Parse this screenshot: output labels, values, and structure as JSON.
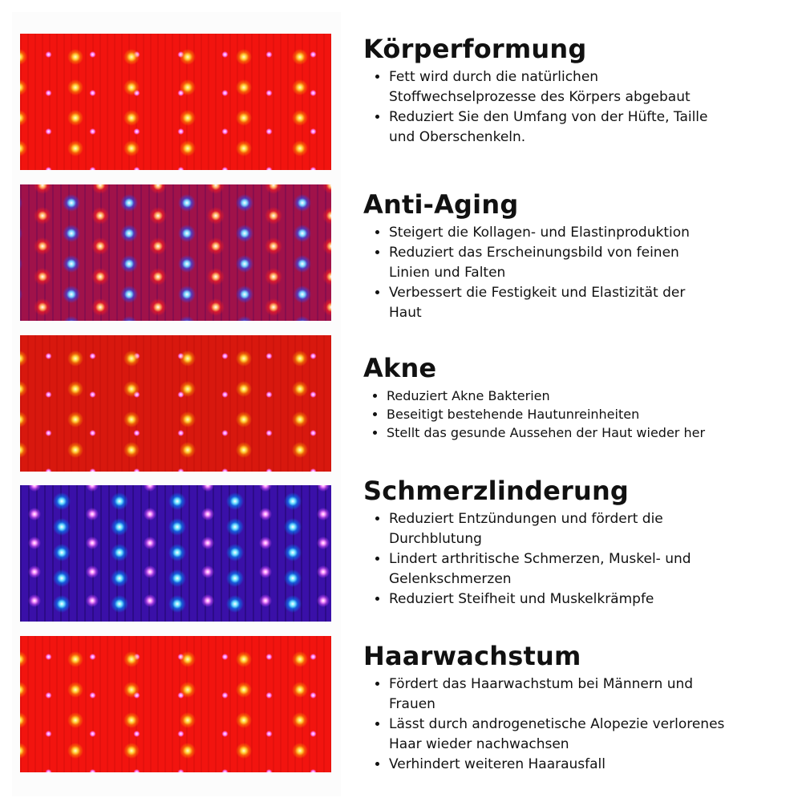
{
  "sections": [
    {
      "title": "Körperformung",
      "bullets": [
        "Fett wird durch die natürlichen Stoffwechselprozesse des Körpers abgebaut",
        "Reduziert Sie den Umfang von der Hüfte, Taille und Oberschenkeln."
      ],
      "image_color": "red"
    },
    {
      "title": "Anti-Aging",
      "bullets": [
        "Steigert die Kollagen- und Elastinproduktion",
        "Reduziert das Erscheinungsbild von feinen Linien und Falten",
        "Verbessert die Festigkeit und Elastizität der Haut"
      ],
      "image_color": "red-blue"
    },
    {
      "title": "Akne",
      "bullets": [
        "Reduziert Akne Bakterien",
        "Beseitigt bestehende Hautunreinheiten",
        "Stellt das gesunde Aussehen der Haut wieder her"
      ],
      "image_color": "red"
    },
    {
      "title": "Schmerzlinderung",
      "bullets": [
        "Reduziert Entzündungen und fördert die Durchblutung",
        "Lindert arthritische Schmerzen, Muskel- und Gelenkschmerzen",
        "Reduziert Steifheit und Muskelkrämpfe"
      ],
      "image_color": "blue"
    },
    {
      "title": "Haarwachstum",
      "bullets": [
        "Fördert das Haarwachstum bei Männern und Frauen",
        "Lässt durch androgenetische Alopezie verlorenes Haar wieder nachwachsen",
        "Verhindert weiteren Haarausfall"
      ],
      "image_color": "red"
    }
  ]
}
